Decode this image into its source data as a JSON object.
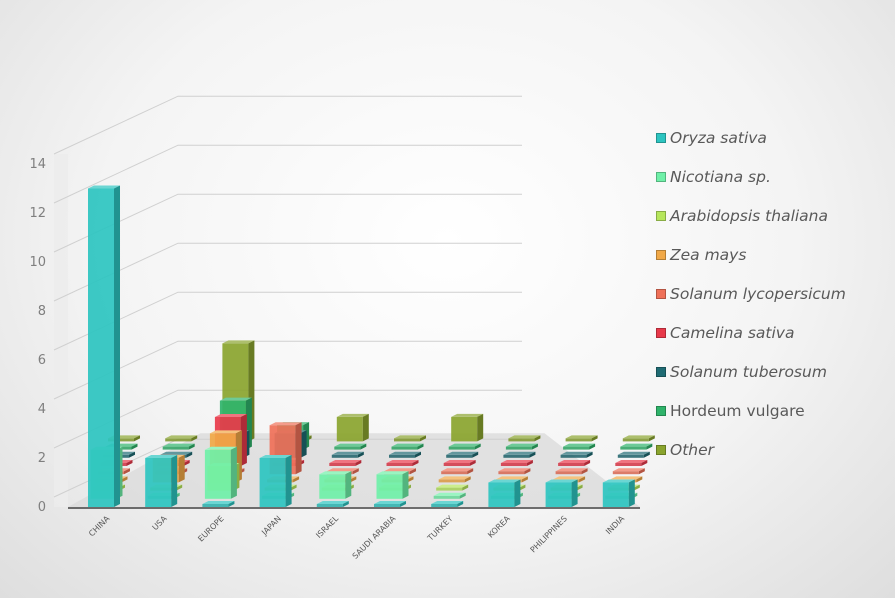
{
  "chart_data": {
    "type": "bar",
    "subtype": "3d-column",
    "title": "",
    "xlabel": "",
    "ylabel": "",
    "ylim": [
      0,
      14
    ],
    "yticks": [
      "0",
      "2",
      "4",
      "6",
      "8",
      "10",
      "12",
      "14"
    ],
    "categories": [
      "CHINA",
      "USA",
      "EUROPE",
      "JAPAN",
      "ISRAEL",
      "SAUDI ARABIA",
      "TURKEY",
      "KOREA",
      "PHILIPPINES",
      "INDIA"
    ],
    "grid": true,
    "legend_position": "right",
    "series": [
      {
        "name": "Oryza sativa",
        "italic": true,
        "color": "#2cc4c0",
        "values": [
          13,
          2,
          0,
          2,
          0,
          0,
          0,
          1,
          1,
          1
        ]
      },
      {
        "name": "Nicotiana sp.",
        "italic": true,
        "color": "#6ff0a8",
        "values": [
          2,
          0,
          2,
          0,
          1,
          1,
          0,
          0,
          0,
          0
        ]
      },
      {
        "name": "Arabidopsis thaliana",
        "italic": true,
        "color": "#b6e65c",
        "values": [
          0,
          0,
          1,
          0,
          0,
          0,
          0,
          0,
          0,
          0
        ]
      },
      {
        "name": "Zea mays",
        "italic": true,
        "color": "#f1a847",
        "values": [
          0,
          1,
          2,
          0,
          0,
          0,
          0,
          0,
          0,
          0
        ]
      },
      {
        "name": "Solanum lycopersicum",
        "italic": true,
        "color": "#ef7058",
        "values": [
          0,
          0,
          0,
          2,
          0,
          0,
          0,
          0,
          0,
          0
        ]
      },
      {
        "name": "Camelina sativa",
        "italic": true,
        "color": "#e8394a",
        "values": [
          0,
          0,
          2,
          0,
          0,
          0,
          0,
          0,
          0,
          0
        ]
      },
      {
        "name": "Solanum tuberosum",
        "italic": true,
        "color": "#1f6b73",
        "values": [
          0,
          0,
          1,
          1,
          0,
          0,
          0,
          0,
          0,
          0
        ]
      },
      {
        "name": "Hordeum vulgare",
        "italic": false,
        "color": "#2fb36a",
        "values": [
          0,
          0,
          2,
          1,
          0,
          0,
          0,
          0,
          0,
          0
        ]
      },
      {
        "name": "Other",
        "italic": true,
        "color": "#8aa42e",
        "values": [
          0,
          0,
          4,
          0,
          1,
          0,
          1,
          0,
          0,
          0
        ]
      }
    ]
  }
}
